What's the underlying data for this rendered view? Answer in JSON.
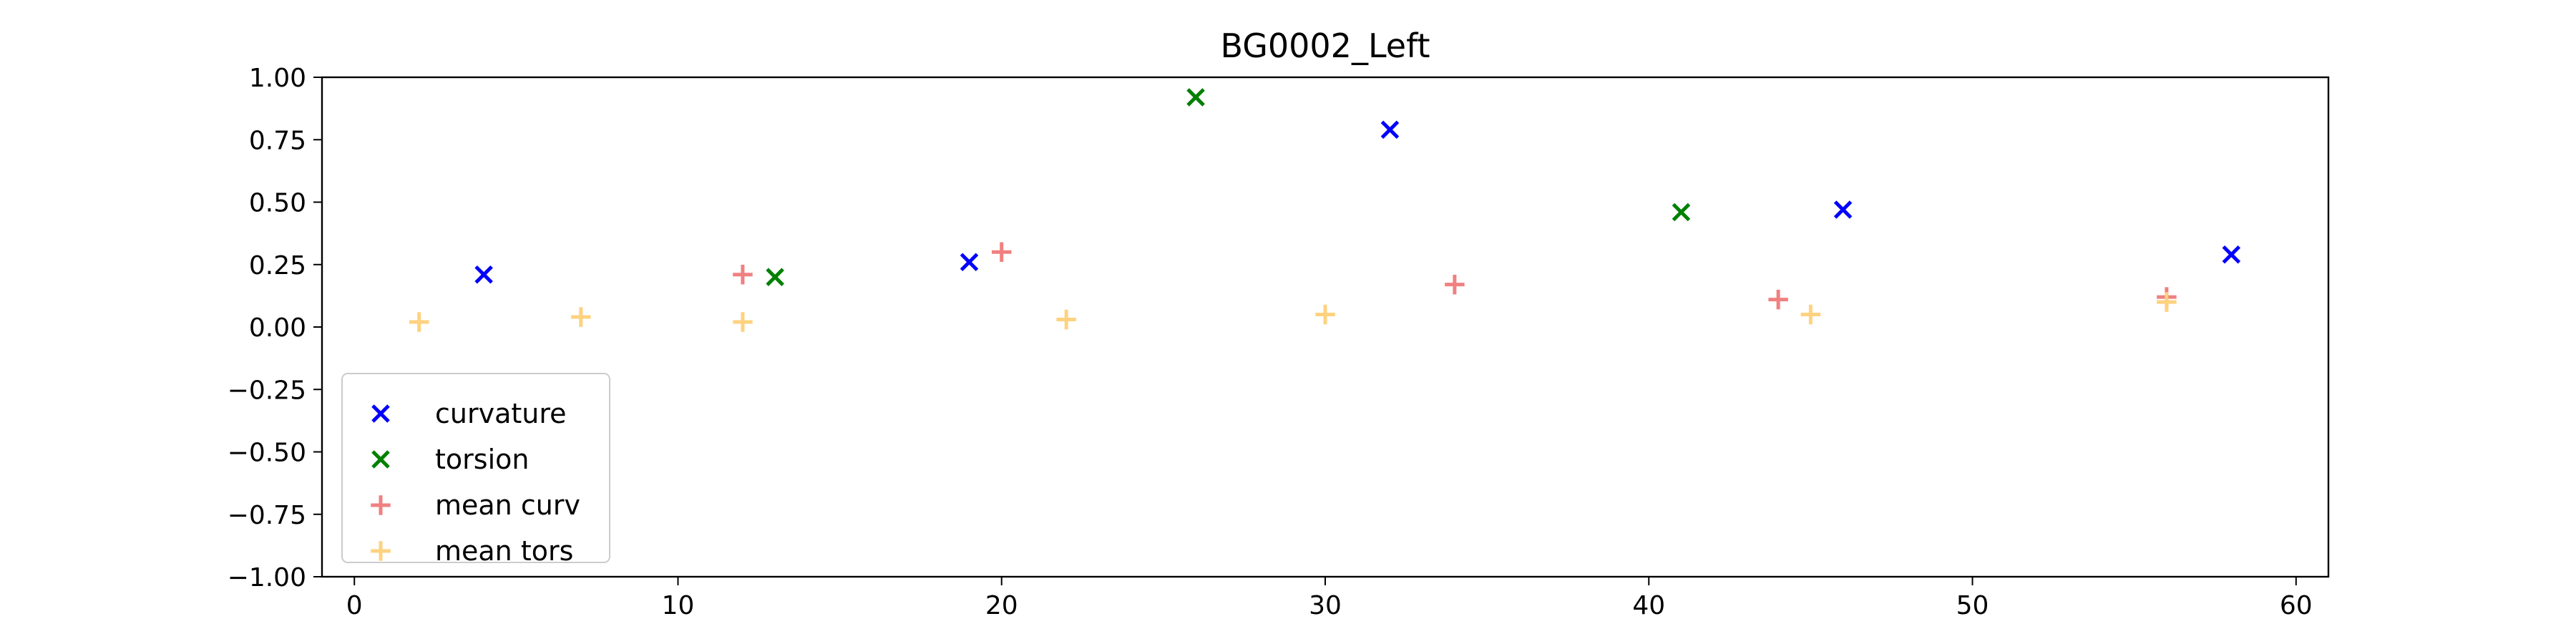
{
  "chart_data": {
    "type": "scatter",
    "title": "BG0002_Left",
    "xlabel": "",
    "ylabel": "",
    "xlim": [
      -1,
      61
    ],
    "ylim": [
      -1.0,
      1.0
    ],
    "xticks": [
      0,
      10,
      20,
      30,
      40,
      50,
      60
    ],
    "xtick_labels": [
      "0",
      "10",
      "20",
      "30",
      "40",
      "50",
      "60"
    ],
    "yticks": [
      1.0,
      0.75,
      0.5,
      0.25,
      0.0,
      -0.25,
      -0.5,
      -0.75,
      -1.0
    ],
    "ytick_labels": [
      "1.00",
      "0.75",
      "0.50",
      "0.25",
      "0.00",
      "−0.25",
      "−0.50",
      "−0.75",
      "−1.00"
    ],
    "grid": false,
    "legend_position": "lower-left",
    "series": [
      {
        "name": "curvature",
        "marker": "x",
        "color": "#0000ff",
        "alpha": 1.0,
        "points": [
          [
            4,
            0.21
          ],
          [
            19,
            0.26
          ],
          [
            32,
            0.79
          ],
          [
            46,
            0.47
          ],
          [
            58,
            0.29
          ]
        ]
      },
      {
        "name": "torsion",
        "marker": "x",
        "color": "#008000",
        "alpha": 1.0,
        "points": [
          [
            13,
            0.2
          ],
          [
            26,
            0.92
          ],
          [
            41,
            0.46
          ]
        ]
      },
      {
        "name": "mean curv",
        "marker": "+",
        "color": "#f08080",
        "alpha": 1.0,
        "points": [
          [
            12,
            0.21
          ],
          [
            20,
            0.3
          ],
          [
            34,
            0.17
          ],
          [
            44,
            0.11
          ],
          [
            56,
            0.12
          ]
        ]
      },
      {
        "name": "mean tors",
        "marker": "+",
        "color": "#ffd27f",
        "alpha": 1.0,
        "points": [
          [
            2,
            0.02
          ],
          [
            7,
            0.04
          ],
          [
            12,
            0.02
          ],
          [
            22,
            0.03
          ],
          [
            30,
            0.05
          ],
          [
            45,
            0.05
          ],
          [
            56,
            0.1
          ]
        ]
      }
    ]
  }
}
